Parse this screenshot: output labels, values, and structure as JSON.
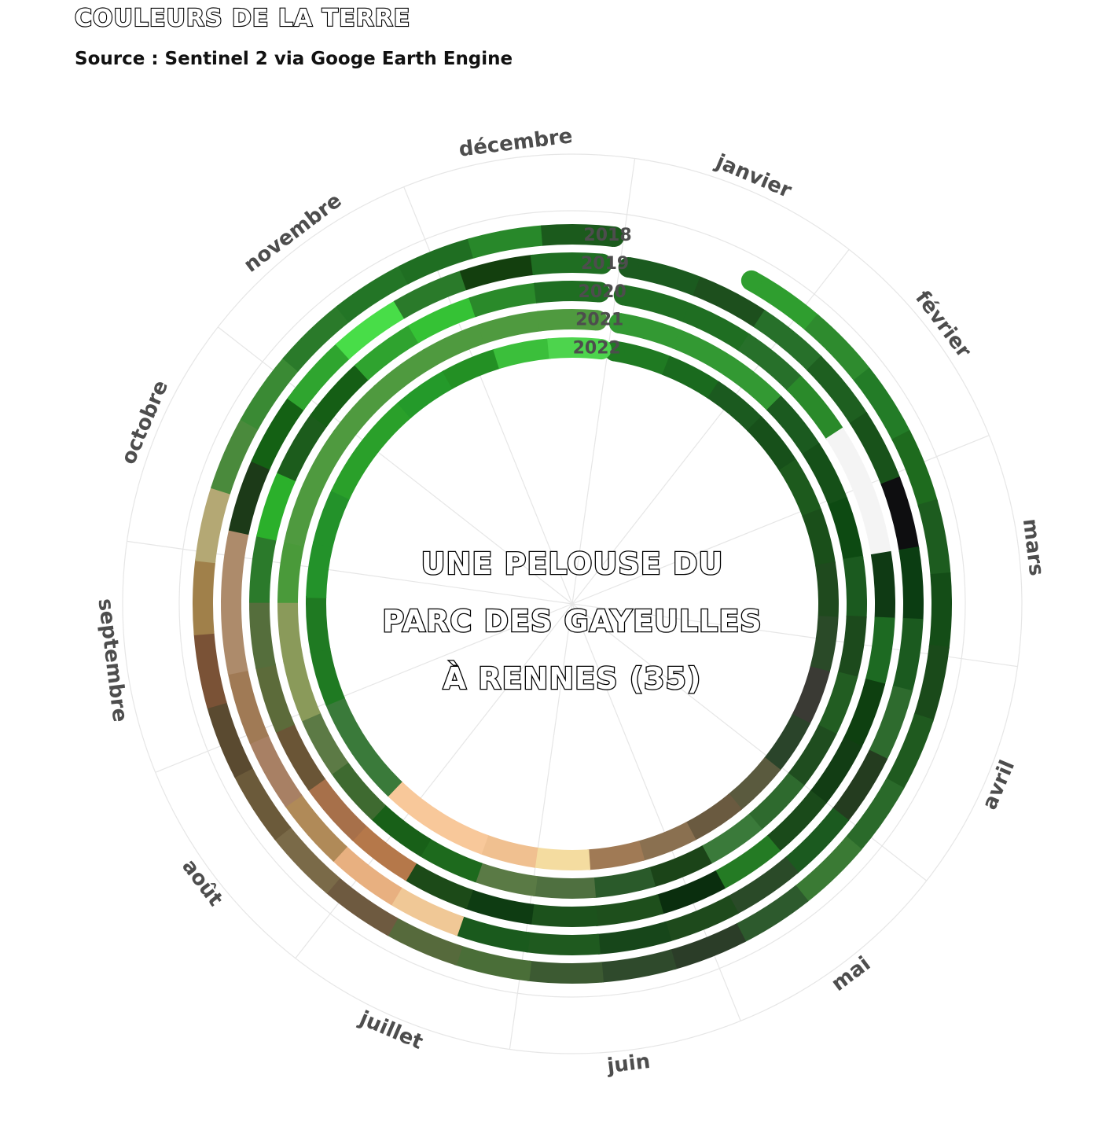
{
  "header": {
    "title": "COULEURS DE LA TERRE",
    "subtitle": "Source : Sentinel 2 via Googe Earth Engine"
  },
  "center_text": [
    "UNE PELOUSE DU",
    "PARC DES GAYEULLES",
    "À RENNES (35)"
  ],
  "chart_data": {
    "type": "radial-color-timeline",
    "months": [
      "janvier",
      "février",
      "mars",
      "avril",
      "mai",
      "juin",
      "juillet",
      "août",
      "septembre",
      "octobre",
      "novembre",
      "décembre"
    ],
    "grid": true,
    "series": [
      {
        "name": "2018",
        "start_month": 0.7,
        "end_month": 11.95,
        "colors": [
          "#2f9e2f",
          "#2e8b2e",
          "#237c27",
          "#1e6b1e",
          "#1d5c1f",
          "#144d17",
          "#1a4a1a",
          "#1f5a1f",
          "#2a6a2a",
          "#3a7a34",
          "#2d5a2d",
          "#2b3d28",
          "#2f4a2c",
          "#3c5a32",
          "#4a6e38",
          "#566a3c",
          "#6e5a40",
          "#7a6a48",
          "#6b5a3a",
          "#5a4a30",
          "#7a5236",
          "#a0804a",
          "#b4a874",
          "#4a8a3c",
          "#3a8a34",
          "#2a7a2a",
          "#237526",
          "#1f6e22",
          "#28882a",
          "#1b5a1c"
        ]
      },
      {
        "name": "2019",
        "start_month": 0.05,
        "end_month": 11.9,
        "colors": [
          "#1b5a1f",
          "#1d4f1d",
          "#27702a",
          "#1e5f20",
          "#18521a",
          "#0e0e10",
          "#0b3d12",
          "#1b5a1f",
          "#2e6b2e",
          "#243c1f",
          "#1b5a1f",
          "#2a4a28",
          "#1e4a1c",
          "#17461a",
          "#1f5a1f",
          "#1a5a1d",
          "#f0c896",
          "#e8b080",
          "#b08a58",
          "#a88064",
          "#a07a55",
          "#ad8b6b",
          "#ad8b6b",
          "#1c3a18",
          "#146114",
          "#2fa52f",
          "#48dd48",
          "#2a7a2a",
          "#133f0e",
          "#1f6e22"
        ]
      },
      {
        "name": "2020",
        "start_month": 0.05,
        "end_month": 11.9,
        "colors": [
          "#1f6e22",
          "#1f6e22",
          "#27702a",
          "#2a8a2a",
          "#f4f4f4",
          "#f4f4f4",
          "#0f3a14",
          "#1d6a22",
          "#0e4010",
          "#123d14",
          "#1a4a1a",
          "#247b24",
          "#0a2e0e",
          "#1e4f1c",
          "#1c521c",
          "#0e3c12",
          "#1c4a18",
          "#b5784a",
          "#a7704a",
          "#6a5536",
          "#5c6b3a",
          "#556e3c",
          "#2b7a2b",
          "#2bb02b",
          "#1c5c1c",
          "#155e15",
          "#2fa32f",
          "#35c235",
          "#2a8a2a",
          "#1f6e22"
        ]
      },
      {
        "name": "2021",
        "start_month": 0.05,
        "end_month": 11.9,
        "colors": [
          "#339933",
          "#339933",
          "#339933",
          "#1b5a1f",
          "#155018",
          "#0d4a12",
          "#1b5a1f",
          "#1c4a1c",
          "#225d22",
          "#1f4d1f",
          "#2e6a2e",
          "#3a7a3a",
          "#1b4418",
          "#2a5a2a",
          "#4f7040",
          "#5a7a45",
          "#1d6a1d",
          "#186018",
          "#3e6a30",
          "#5c7a45",
          "#8a9a5a",
          "#8a9a5a",
          "#4a9a3a",
          "#4f9a3f",
          "#4f9a3f",
          "#4f9a3f",
          "#4f9a3f",
          "#4f9a3f",
          "#4f9a3f",
          "#4f9a3f"
        ]
      },
      {
        "name": "2022",
        "start_month": 0.05,
        "end_month": 11.95,
        "colors": [
          "#1f7a22",
          "#1a6a1e",
          "#1b5a1f",
          "#17501a",
          "#1d5a1d",
          "#1a4f1a",
          "#1f4a1e",
          "#2a4a28",
          "#3a3a34",
          "#2a442a",
          "#5a5a3e",
          "#6a5a40",
          "#8a7050",
          "#a07a55",
          "#f4dca0",
          "#f0c090",
          "#f8c89a",
          "#f8c89a",
          "#3a7a3a",
          "#3a7a3a",
          "#1f7a22",
          "#1f7a22",
          "#23922a",
          "#23922a",
          "#2aa02a",
          "#2aa02a",
          "#249a2a",
          "#239024",
          "#3bbf3b",
          "#4dd44d"
        ]
      }
    ]
  }
}
